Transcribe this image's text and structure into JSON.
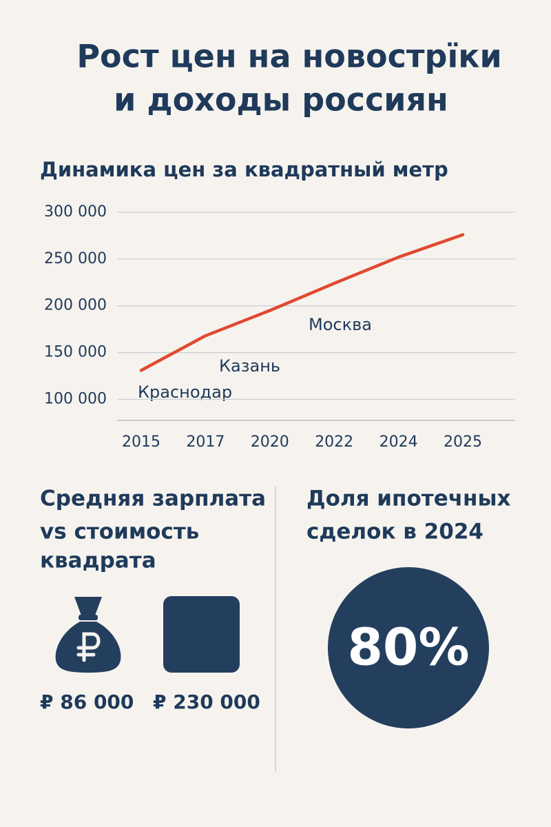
{
  "title": [
    "Рост цен на новострïки",
    "и доходы россиян"
  ],
  "chart_data": {
    "type": "line",
    "title": "Динамика цен за квадратный метр",
    "categories": [
      "2015",
      "2017",
      "2020",
      "2022",
      "2024",
      "2025"
    ],
    "values": [
      131000,
      168000,
      195000,
      224000,
      252000,
      276000
    ],
    "color": "#e0492f",
    "ylim": [
      77500,
      300000
    ],
    "yticks": [
      {
        "value": 100000,
        "label": "100 000"
      },
      {
        "value": 150000,
        "label": "150 000"
      },
      {
        "value": 200000,
        "label": "200 000"
      },
      {
        "value": 250000,
        "label": "250 000"
      },
      {
        "value": 300000,
        "label": "300 000"
      }
    ],
    "grid": true,
    "annotations": [
      "Краснодар",
      "Казань",
      "Москва"
    ]
  },
  "salary": {
    "heading": [
      "Средняя зарплата",
      "vs стоимость",
      "квадрата"
    ],
    "salary": "₽ 86 000",
    "price": "₽ 230 000"
  },
  "mortgage": {
    "heading": [
      "Доля ипотечных",
      "сделок в 2024"
    ],
    "share": "80%"
  }
}
